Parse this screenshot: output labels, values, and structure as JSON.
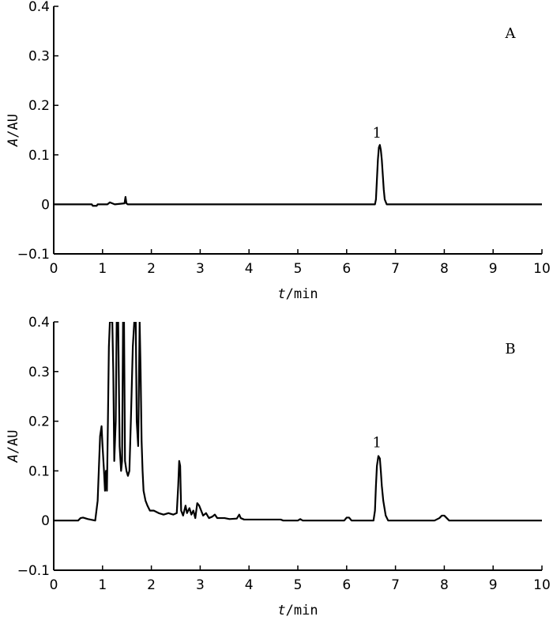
{
  "chart_data": [
    {
      "type": "line",
      "panel_label": "A",
      "xlabel_italic": "t",
      "xlabel_rest": "/min",
      "ylabel_italic": "A",
      "ylabel_rest": "/AU",
      "xlim": [
        0,
        10
      ],
      "ylim": [
        -0.1,
        0.4
      ],
      "x_ticks": [
        0,
        1,
        2,
        3,
        4,
        5,
        6,
        7,
        8,
        9,
        10
      ],
      "y_ticks": [
        "0.4",
        "0.3",
        "0.2",
        "0.1",
        "0",
        "−0.1"
      ],
      "y_tick_values": [
        0.4,
        0.3,
        0.2,
        0.1,
        0,
        -0.1
      ],
      "peak_annotations": [
        {
          "text": "1",
          "x": 6.67,
          "y": 0.122
        }
      ],
      "series": [
        {
          "points": [
            [
              0,
              0
            ],
            [
              0.78,
              0
            ],
            [
              0.8,
              -0.003
            ],
            [
              0.88,
              -0.003
            ],
            [
              0.9,
              0
            ],
            [
              1.1,
              0
            ],
            [
              1.15,
              0.004
            ],
            [
              1.2,
              0.002
            ],
            [
              1.25,
              0
            ],
            [
              1.35,
              0.001
            ],
            [
              1.45,
              0.002
            ],
            [
              1.47,
              0.015
            ],
            [
              1.49,
              0.002
            ],
            [
              1.52,
              0
            ],
            [
              6.58,
              0
            ],
            [
              6.6,
              0.01
            ],
            [
              6.62,
              0.05
            ],
            [
              6.64,
              0.09
            ],
            [
              6.66,
              0.115
            ],
            [
              6.68,
              0.12
            ],
            [
              6.7,
              0.11
            ],
            [
              6.72,
              0.09
            ],
            [
              6.74,
              0.06
            ],
            [
              6.76,
              0.03
            ],
            [
              6.78,
              0.01
            ],
            [
              6.82,
              0
            ],
            [
              10,
              0
            ]
          ]
        }
      ]
    },
    {
      "type": "line",
      "panel_label": "B",
      "xlabel_italic": "t",
      "xlabel_rest": "/min",
      "ylabel_italic": "A",
      "ylabel_rest": "/AU",
      "xlim": [
        0,
        10
      ],
      "ylim": [
        -0.1,
        0.4
      ],
      "x_ticks": [
        0,
        1,
        2,
        3,
        4,
        5,
        6,
        7,
        8,
        9,
        10
      ],
      "y_ticks": [
        "0.4",
        "0.3",
        "0.2",
        "0.1",
        "0",
        "−0.1"
      ],
      "y_tick_values": [
        0.4,
        0.3,
        0.2,
        0.1,
        0,
        -0.1
      ],
      "peak_annotations": [
        {
          "text": "1",
          "x": 6.67,
          "y": 0.135
        }
      ],
      "series": [
        {
          "points": [
            [
              0,
              0
            ],
            [
              0.5,
              0
            ],
            [
              0.55,
              0.005
            ],
            [
              0.6,
              0.006
            ],
            [
              0.7,
              0.003
            ],
            [
              0.85,
              0
            ],
            [
              0.9,
              0.04
            ],
            [
              0.95,
              0.17
            ],
            [
              0.98,
              0.19
            ],
            [
              1.0,
              0.15
            ],
            [
              1.03,
              0.1
            ],
            [
              1.05,
              0.06
            ],
            [
              1.07,
              0.1
            ],
            [
              1.09,
              0.06
            ],
            [
              1.11,
              0.2
            ],
            [
              1.13,
              0.35
            ],
            [
              1.15,
              0.4
            ],
            [
              1.2,
              0.4
            ],
            [
              1.22,
              0.3
            ],
            [
              1.24,
              0.12
            ],
            [
              1.27,
              0.2
            ],
            [
              1.29,
              0.4
            ],
            [
              1.32,
              0.4
            ],
            [
              1.35,
              0.15
            ],
            [
              1.38,
              0.1
            ],
            [
              1.4,
              0.12
            ],
            [
              1.42,
              0.4
            ],
            [
              1.44,
              0.4
            ],
            [
              1.46,
              0.12
            ],
            [
              1.49,
              0.1
            ],
            [
              1.52,
              0.09
            ],
            [
              1.55,
              0.1
            ],
            [
              1.58,
              0.2
            ],
            [
              1.62,
              0.35
            ],
            [
              1.65,
              0.4
            ],
            [
              1.68,
              0.4
            ],
            [
              1.7,
              0.2
            ],
            [
              1.73,
              0.15
            ],
            [
              1.76,
              0.4
            ],
            [
              1.78,
              0.3
            ],
            [
              1.8,
              0.16
            ],
            [
              1.82,
              0.1
            ],
            [
              1.84,
              0.06
            ],
            [
              1.88,
              0.04
            ],
            [
              1.92,
              0.03
            ],
            [
              1.97,
              0.02
            ],
            [
              2.05,
              0.02
            ],
            [
              2.15,
              0.015
            ],
            [
              2.25,
              0.012
            ],
            [
              2.35,
              0.015
            ],
            [
              2.45,
              0.012
            ],
            [
              2.52,
              0.015
            ],
            [
              2.55,
              0.07
            ],
            [
              2.57,
              0.12
            ],
            [
              2.59,
              0.11
            ],
            [
              2.61,
              0.02
            ],
            [
              2.65,
              0.01
            ],
            [
              2.7,
              0.03
            ],
            [
              2.73,
              0.015
            ],
            [
              2.78,
              0.025
            ],
            [
              2.82,
              0.012
            ],
            [
              2.86,
              0.02
            ],
            [
              2.9,
              0.005
            ],
            [
              2.94,
              0.035
            ],
            [
              2.98,
              0.03
            ],
            [
              3.02,
              0.02
            ],
            [
              3.06,
              0.01
            ],
            [
              3.12,
              0.015
            ],
            [
              3.18,
              0.005
            ],
            [
              3.25,
              0.008
            ],
            [
              3.3,
              0.012
            ],
            [
              3.35,
              0.005
            ],
            [
              3.5,
              0.005
            ],
            [
              3.6,
              0.003
            ],
            [
              3.75,
              0.004
            ],
            [
              3.8,
              0.012
            ],
            [
              3.83,
              0.005
            ],
            [
              3.9,
              0.002
            ],
            [
              4.1,
              0.002
            ],
            [
              4.3,
              0.002
            ],
            [
              4.65,
              0.002
            ],
            [
              4.7,
              0
            ],
            [
              5.0,
              0
            ],
            [
              5.05,
              0.003
            ],
            [
              5.1,
              0
            ],
            [
              5.95,
              0
            ],
            [
              6.0,
              0.006
            ],
            [
              6.05,
              0.006
            ],
            [
              6.1,
              0
            ],
            [
              6.55,
              0
            ],
            [
              6.58,
              0.02
            ],
            [
              6.6,
              0.07
            ],
            [
              6.62,
              0.11
            ],
            [
              6.65,
              0.13
            ],
            [
              6.68,
              0.125
            ],
            [
              6.7,
              0.1
            ],
            [
              6.72,
              0.07
            ],
            [
              6.75,
              0.04
            ],
            [
              6.8,
              0.01
            ],
            [
              6.85,
              0
            ],
            [
              7.8,
              0
            ],
            [
              7.9,
              0.005
            ],
            [
              7.95,
              0.01
            ],
            [
              8.0,
              0.01
            ],
            [
              8.05,
              0.005
            ],
            [
              8.1,
              0
            ],
            [
              10,
              0
            ]
          ]
        }
      ]
    }
  ]
}
